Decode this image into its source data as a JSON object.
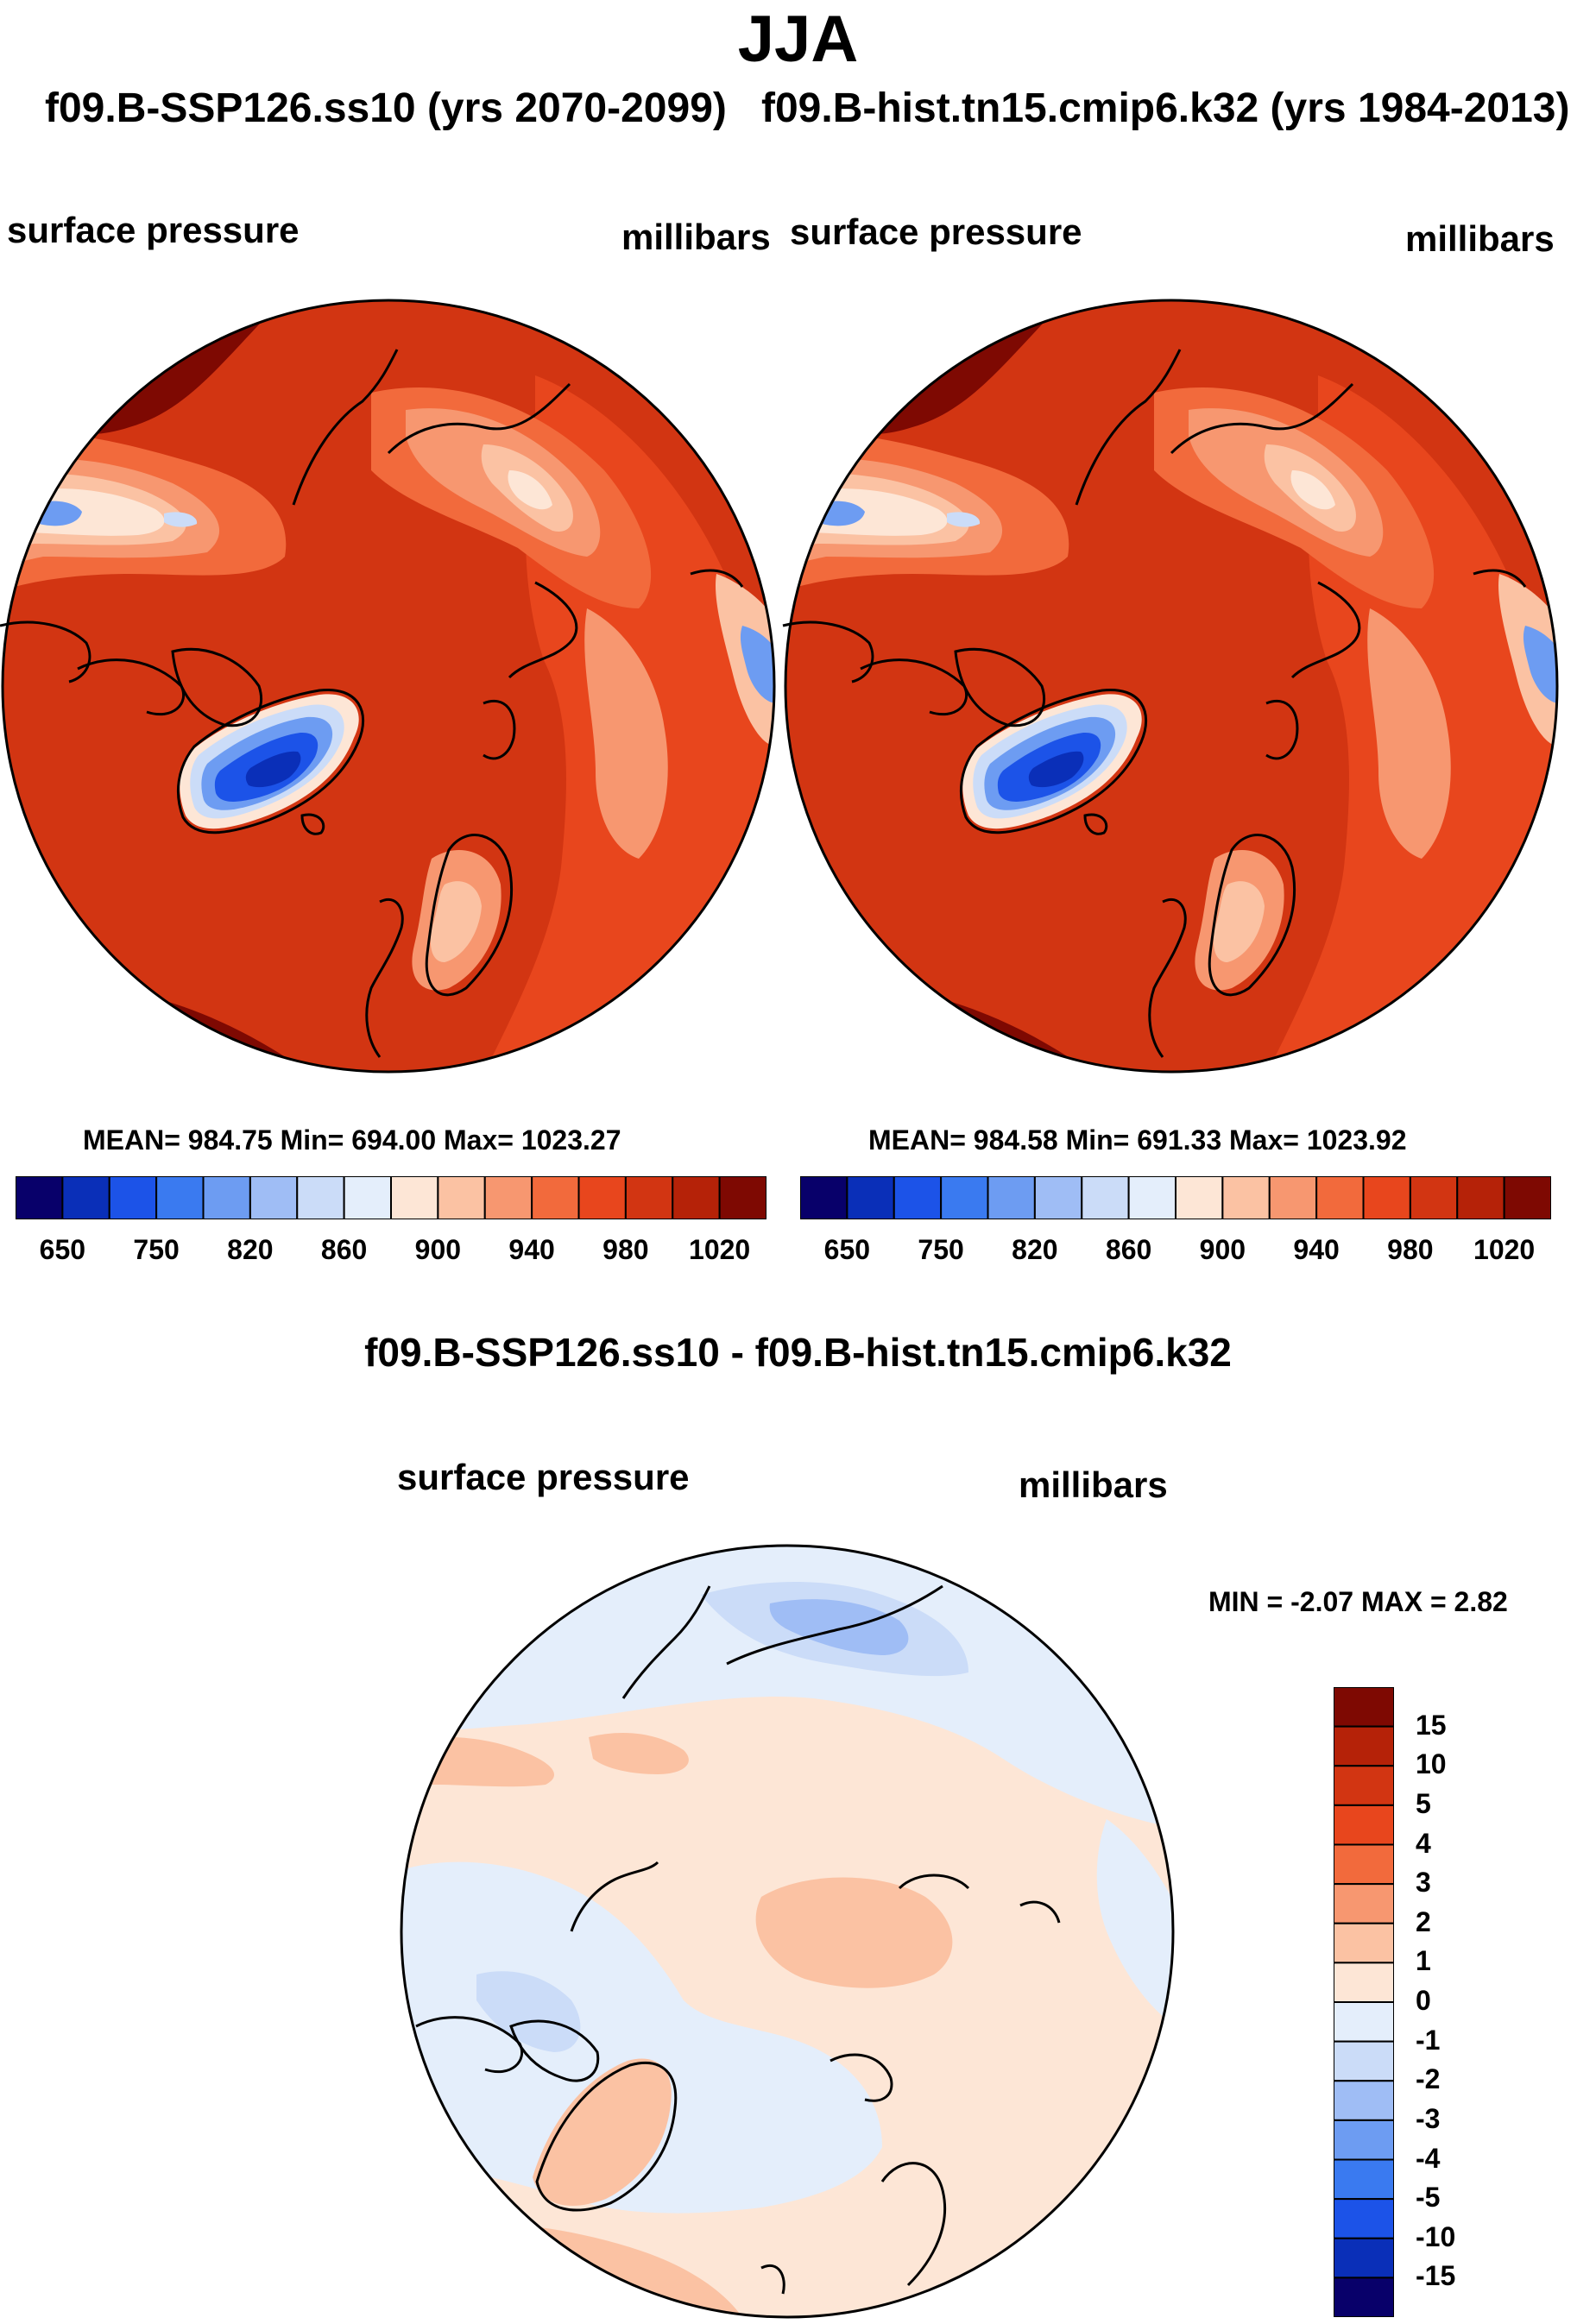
{
  "figure": {
    "season": "JJA",
    "case_a_title": "f09.B-SSP126.ss10 (yrs 2070-2099)",
    "case_b_title": "f09.B-hist.tn15.cmip6.k32 (yrs 1984-2013)",
    "diff_title": "f09.B-SSP126.ss10 - f09.B-hist.tn15.cmip6.k32"
  },
  "panels": {
    "case_a": {
      "variable": "surface pressure",
      "units": "millibars",
      "stats": "MEAN= 984.75  Min= 694.00  Max= 1023.27"
    },
    "case_b": {
      "variable": "surface pressure",
      "units": "millibars",
      "stats": "MEAN= 984.58  Min= 691.33  Max= 1023.92"
    },
    "diff": {
      "variable": "surface pressure",
      "units": "millibars",
      "minmax": "MIN =  -2.07 MAX =   2.82"
    }
  },
  "colorbars": {
    "abs_colors": [
      "#08006a",
      "#0a2fb8",
      "#1c53e8",
      "#3a7af0",
      "#6d9cf2",
      "#9fbdf5",
      "#cbdcf8",
      "#e4eefb",
      "#fde6d6",
      "#fbc2a3",
      "#f79770",
      "#f26a3c",
      "#e8461d",
      "#d23512",
      "#b52208",
      "#7e0902"
    ],
    "abs_labels": [
      "650",
      "750",
      "820",
      "860",
      "900",
      "940",
      "980",
      "1020"
    ],
    "diff_colors": [
      "#08006a",
      "#0a2fb8",
      "#1c53e8",
      "#3a7af0",
      "#6d9cf2",
      "#9fbdf5",
      "#cbdcf8",
      "#e4eefb",
      "#fde6d6",
      "#fbc2a3",
      "#f79770",
      "#f26a3c",
      "#e8461d",
      "#d23512",
      "#b52208",
      "#7e0902"
    ],
    "diff_labels": [
      "-15",
      "-10",
      "-5",
      "-4",
      "-3",
      "-2",
      "-1",
      "0",
      "1",
      "2",
      "3",
      "4",
      "5",
      "10",
      "15"
    ]
  },
  "map_colors": {
    "base": "#d23512",
    "high": "#b52208",
    "max": "#7e0902",
    "mid": "#e8461d",
    "mid2": "#f26a3c",
    "low": "#f79770",
    "lower": "#fbc2a3",
    "pale": "#fde6d6",
    "blue_light": "#cbdcf8",
    "blue": "#6d9cf2",
    "blue_mid": "#1c53e8",
    "blue_deep": "#0a2fb8",
    "diff_neg1": "#e4eefb",
    "diff_neg2": "#cbdcf8",
    "diff_neg3": "#9fbdf5",
    "diff_pos1": "#fde6d6",
    "diff_pos2": "#fbc2a3",
    "coast": "#000000"
  }
}
